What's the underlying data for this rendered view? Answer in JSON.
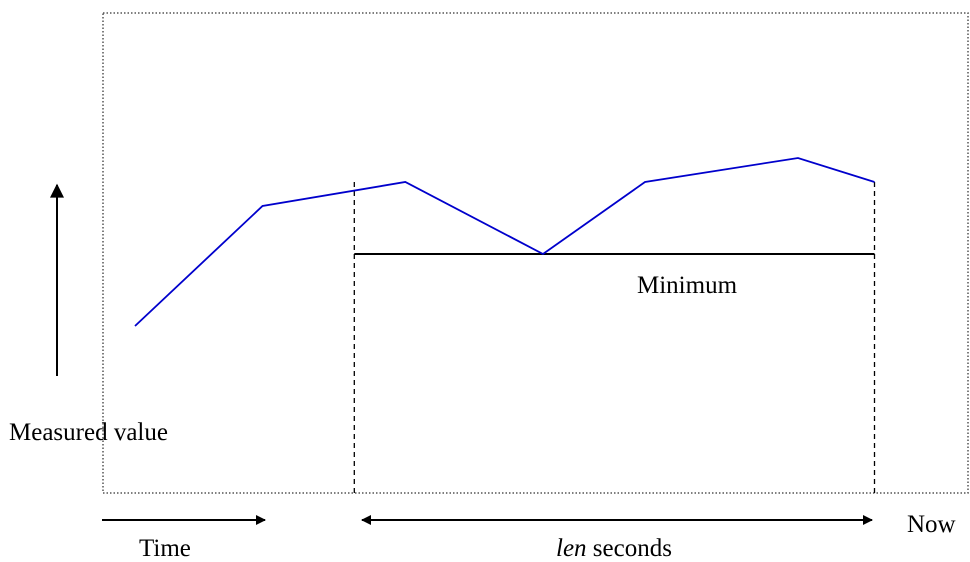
{
  "diagram": {
    "labels": {
      "minimum": "Minimum",
      "measured_value": "Measured value",
      "time": "Time",
      "len_italic": "len",
      "len_rest": " seconds",
      "now": "Now"
    },
    "series": {
      "name": "",
      "color": "#0000cc",
      "points": [
        [
          0,
          0.2
        ],
        [
          0.25,
          0.7
        ],
        [
          0.53,
          0.8
        ],
        [
          0.8,
          0.5
        ],
        [
          1.0,
          0.8
        ],
        [
          1.3,
          0.9
        ],
        [
          1.45,
          0.8
        ]
      ]
    },
    "window": {
      "start": 0.43,
      "end": 1.45,
      "minimum": 0.5
    },
    "colors": {
      "frame": "#555555",
      "ink": "#000000"
    }
  }
}
